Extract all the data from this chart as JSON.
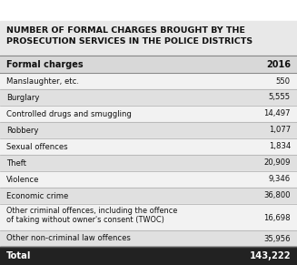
{
  "title": "NUMBER OF FORMAL CHARGES BROUGHT BY THE\nPROSECUTION SERVICES IN THE POLICE DISTRICTS",
  "col1_header": "Formal charges",
  "col2_header": "2016",
  "rows": [
    [
      "Manslaughter, etc.",
      "550"
    ],
    [
      "Burglary",
      "5,555"
    ],
    [
      "Controlled drugs and smuggling",
      "14,497"
    ],
    [
      "Robbery",
      "1,077"
    ],
    [
      "Sexual offences",
      "1,834"
    ],
    [
      "Theft",
      "20,909"
    ],
    [
      "Violence",
      "9,346"
    ],
    [
      "Economic crime",
      "36,800"
    ],
    [
      "Other criminal offences, including the offence\nof taking without owner's consent (TWOC)",
      "16,698"
    ],
    [
      "Other non-criminal law offences",
      "35,956"
    ]
  ],
  "total_label": "Total",
  "total_value": "143,222",
  "title_bg": "#e8e8e8",
  "title_color": "#111111",
  "header_bg": "#d8d8d8",
  "row_bg_light": "#f2f2f2",
  "row_bg_dark": "#e0e0e0",
  "total_bg": "#222222",
  "total_color": "#ffffff",
  "line_color": "#aaaaaa",
  "fig_w": 3.27,
  "fig_h": 2.91,
  "dpi": 100
}
